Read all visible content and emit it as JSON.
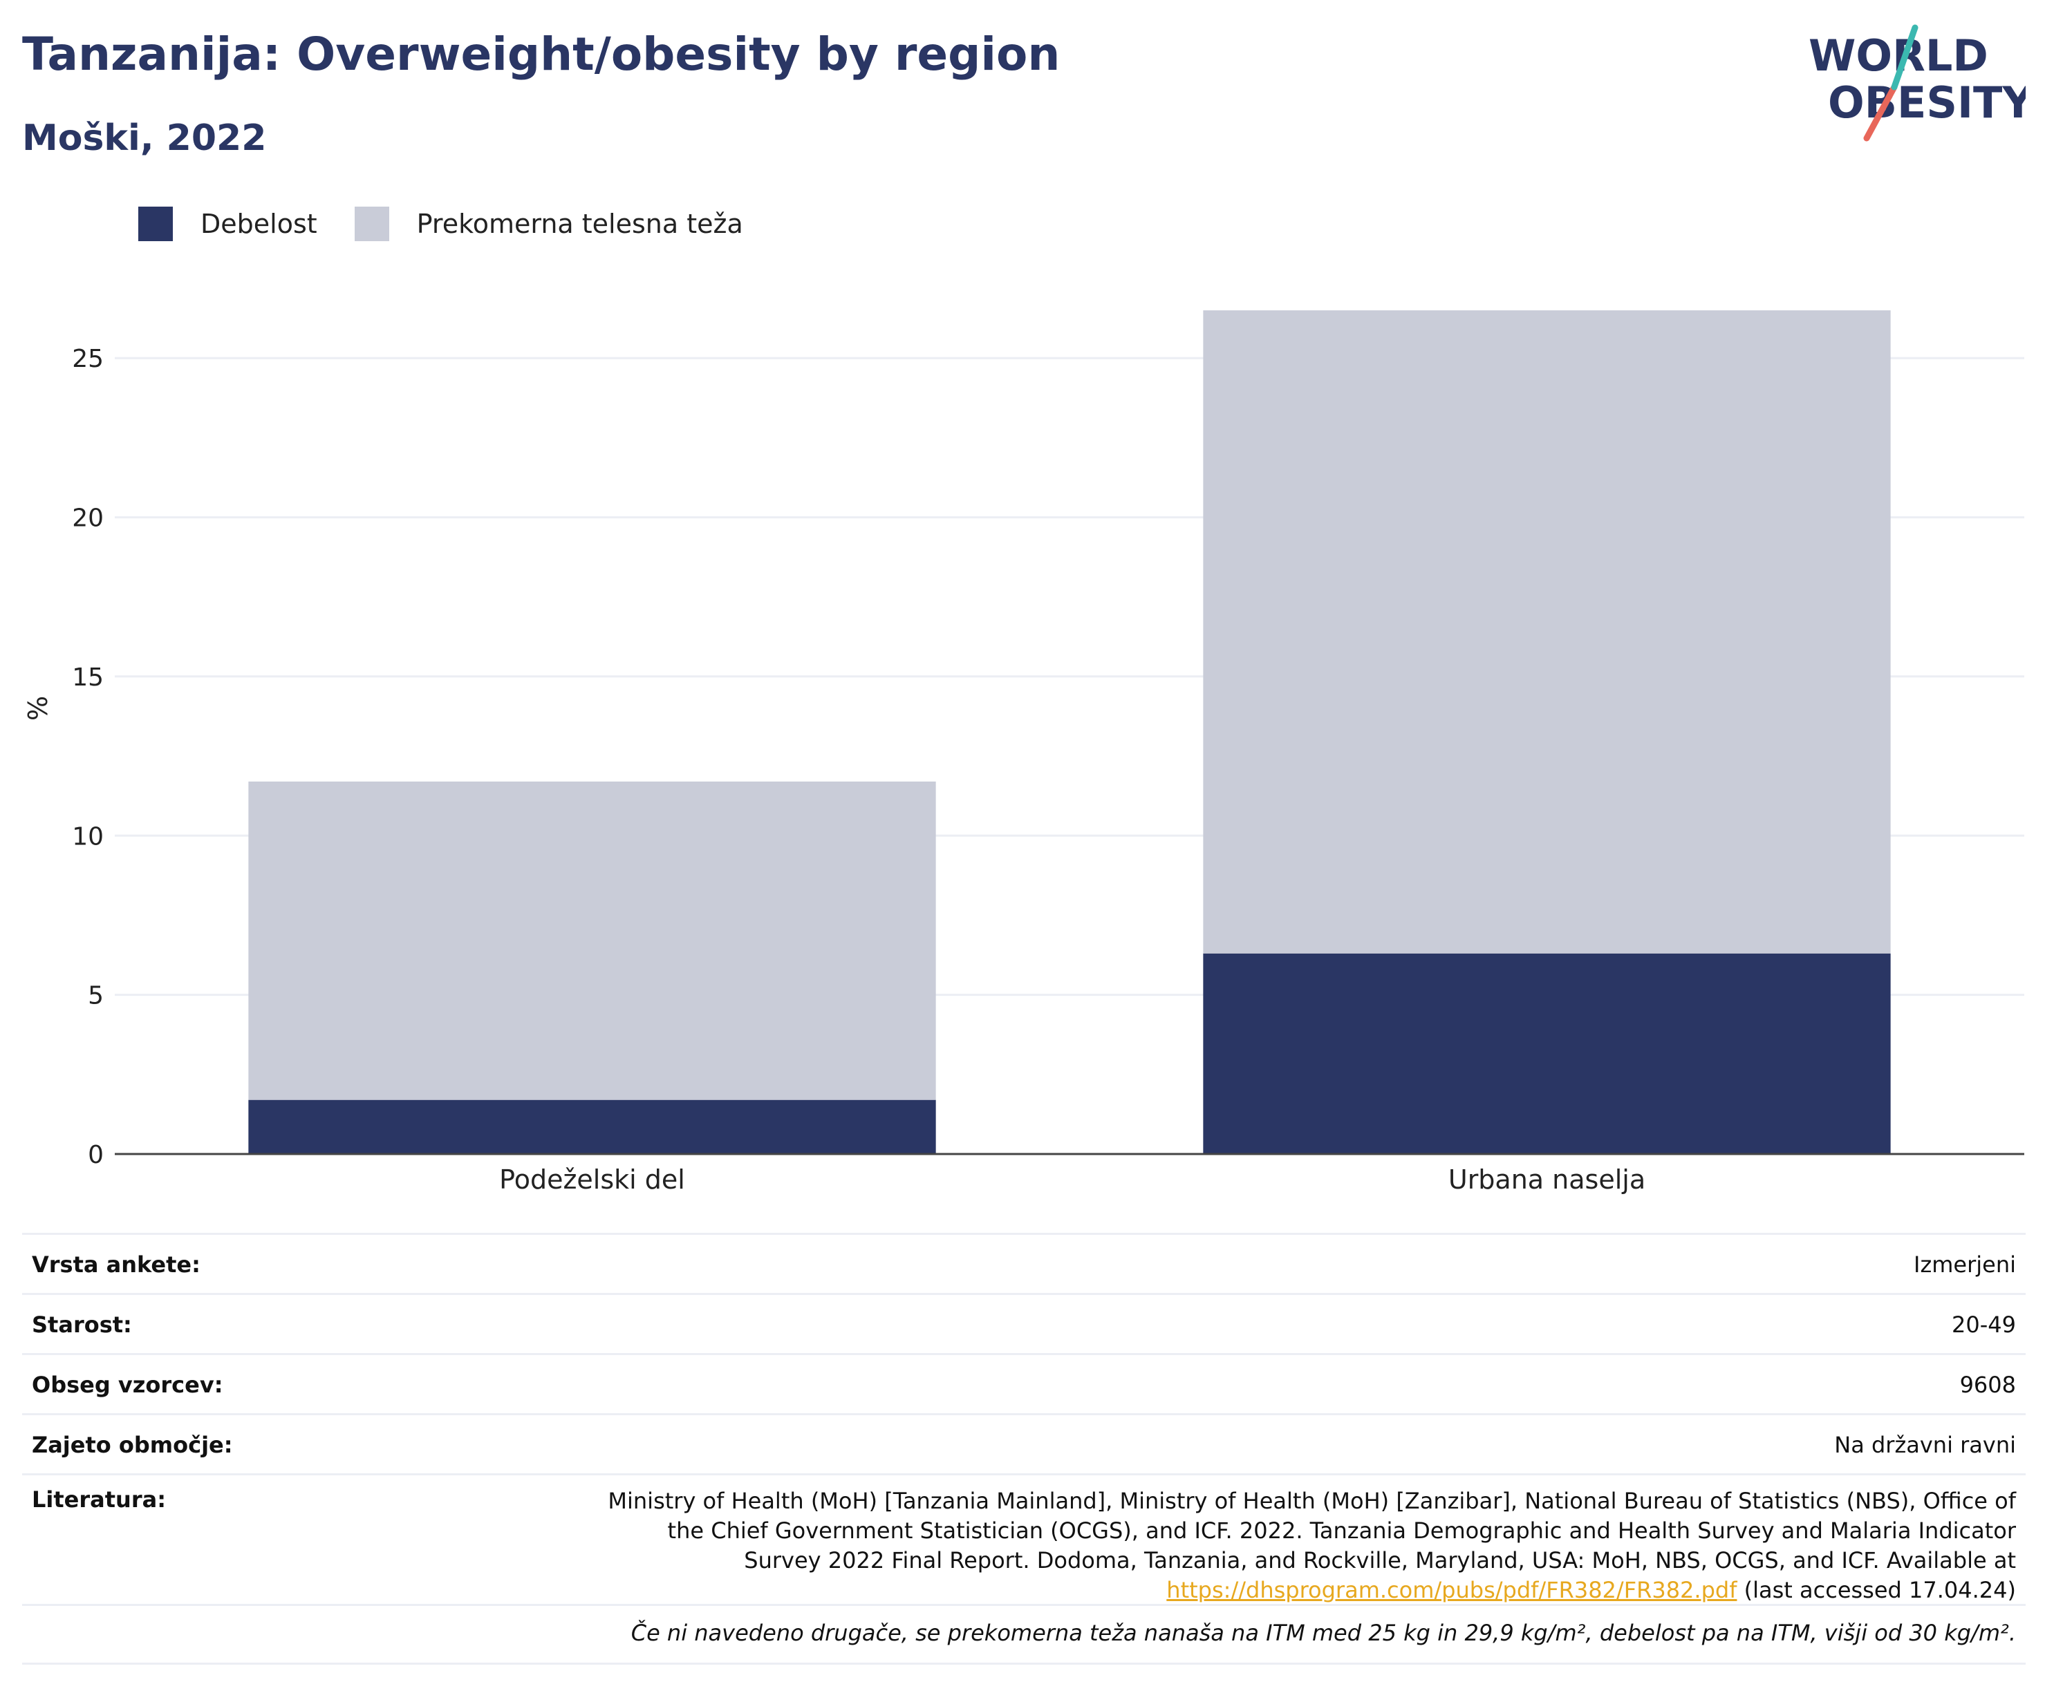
{
  "title": "Tanzanija: Overweight/obesity by region",
  "subtitle": "Moški, 2022",
  "logo": {
    "line1": "WORLD",
    "line2": "OBESITY"
  },
  "legend": [
    {
      "label": "Debelost",
      "color": "#2a3664"
    },
    {
      "label": "Prekomerna telesna teža",
      "color": "#c9ccd8"
    }
  ],
  "chart_data": {
    "type": "bar",
    "stacked": true,
    "categories": [
      "Podeželski del",
      "Urbana naselja"
    ],
    "series": [
      {
        "name": "Debelost",
        "values": [
          1.7,
          6.3
        ],
        "color": "#2a3664"
      },
      {
        "name": "Prekomerna telesna teža",
        "values": [
          10.0,
          20.2
        ],
        "color": "#c9ccd8"
      }
    ],
    "ylabel": "%",
    "yticks": [
      0,
      5,
      10,
      15,
      20,
      25
    ],
    "ylim": [
      0,
      28
    ],
    "grid": true,
    "legend_position": "top-left"
  },
  "info": {
    "survey_type": {
      "label": "Vrsta ankete:",
      "value": "Izmerjeni"
    },
    "age": {
      "label": "Starost:",
      "value": "20-49"
    },
    "sample": {
      "label": "Obseg vzorcev:",
      "value": "9608"
    },
    "coverage": {
      "label": "Zajeto območje:",
      "value": "Na državni ravni"
    },
    "reference": {
      "label": "Literatura:",
      "text": "Ministry of Health (MoH) [Tanzania Mainland], Ministry of Health (MoH) [Zanzibar], National Bureau of Statistics (NBS), Office of the Chief Government Statistician (OCGS), and ICF. 2022. Tanzania Demographic and Health Survey and Malaria Indicator Survey 2022 Final Report. Dodoma, Tanzania, and Rockville, Maryland, USA: MoH, NBS, OCGS, and ICF. Available at",
      "link": "https://dhsprogram.com/pubs/pdf/FR382/FR382.pdf",
      "suffix": "(last accessed 17.04.24)"
    },
    "note": "Če ni navedeno drugače, se prekomerna teža nanaša na ITM med 25 kg in 29,9 kg/m², debelost pa na ITM, višji od 30 kg/m²."
  }
}
